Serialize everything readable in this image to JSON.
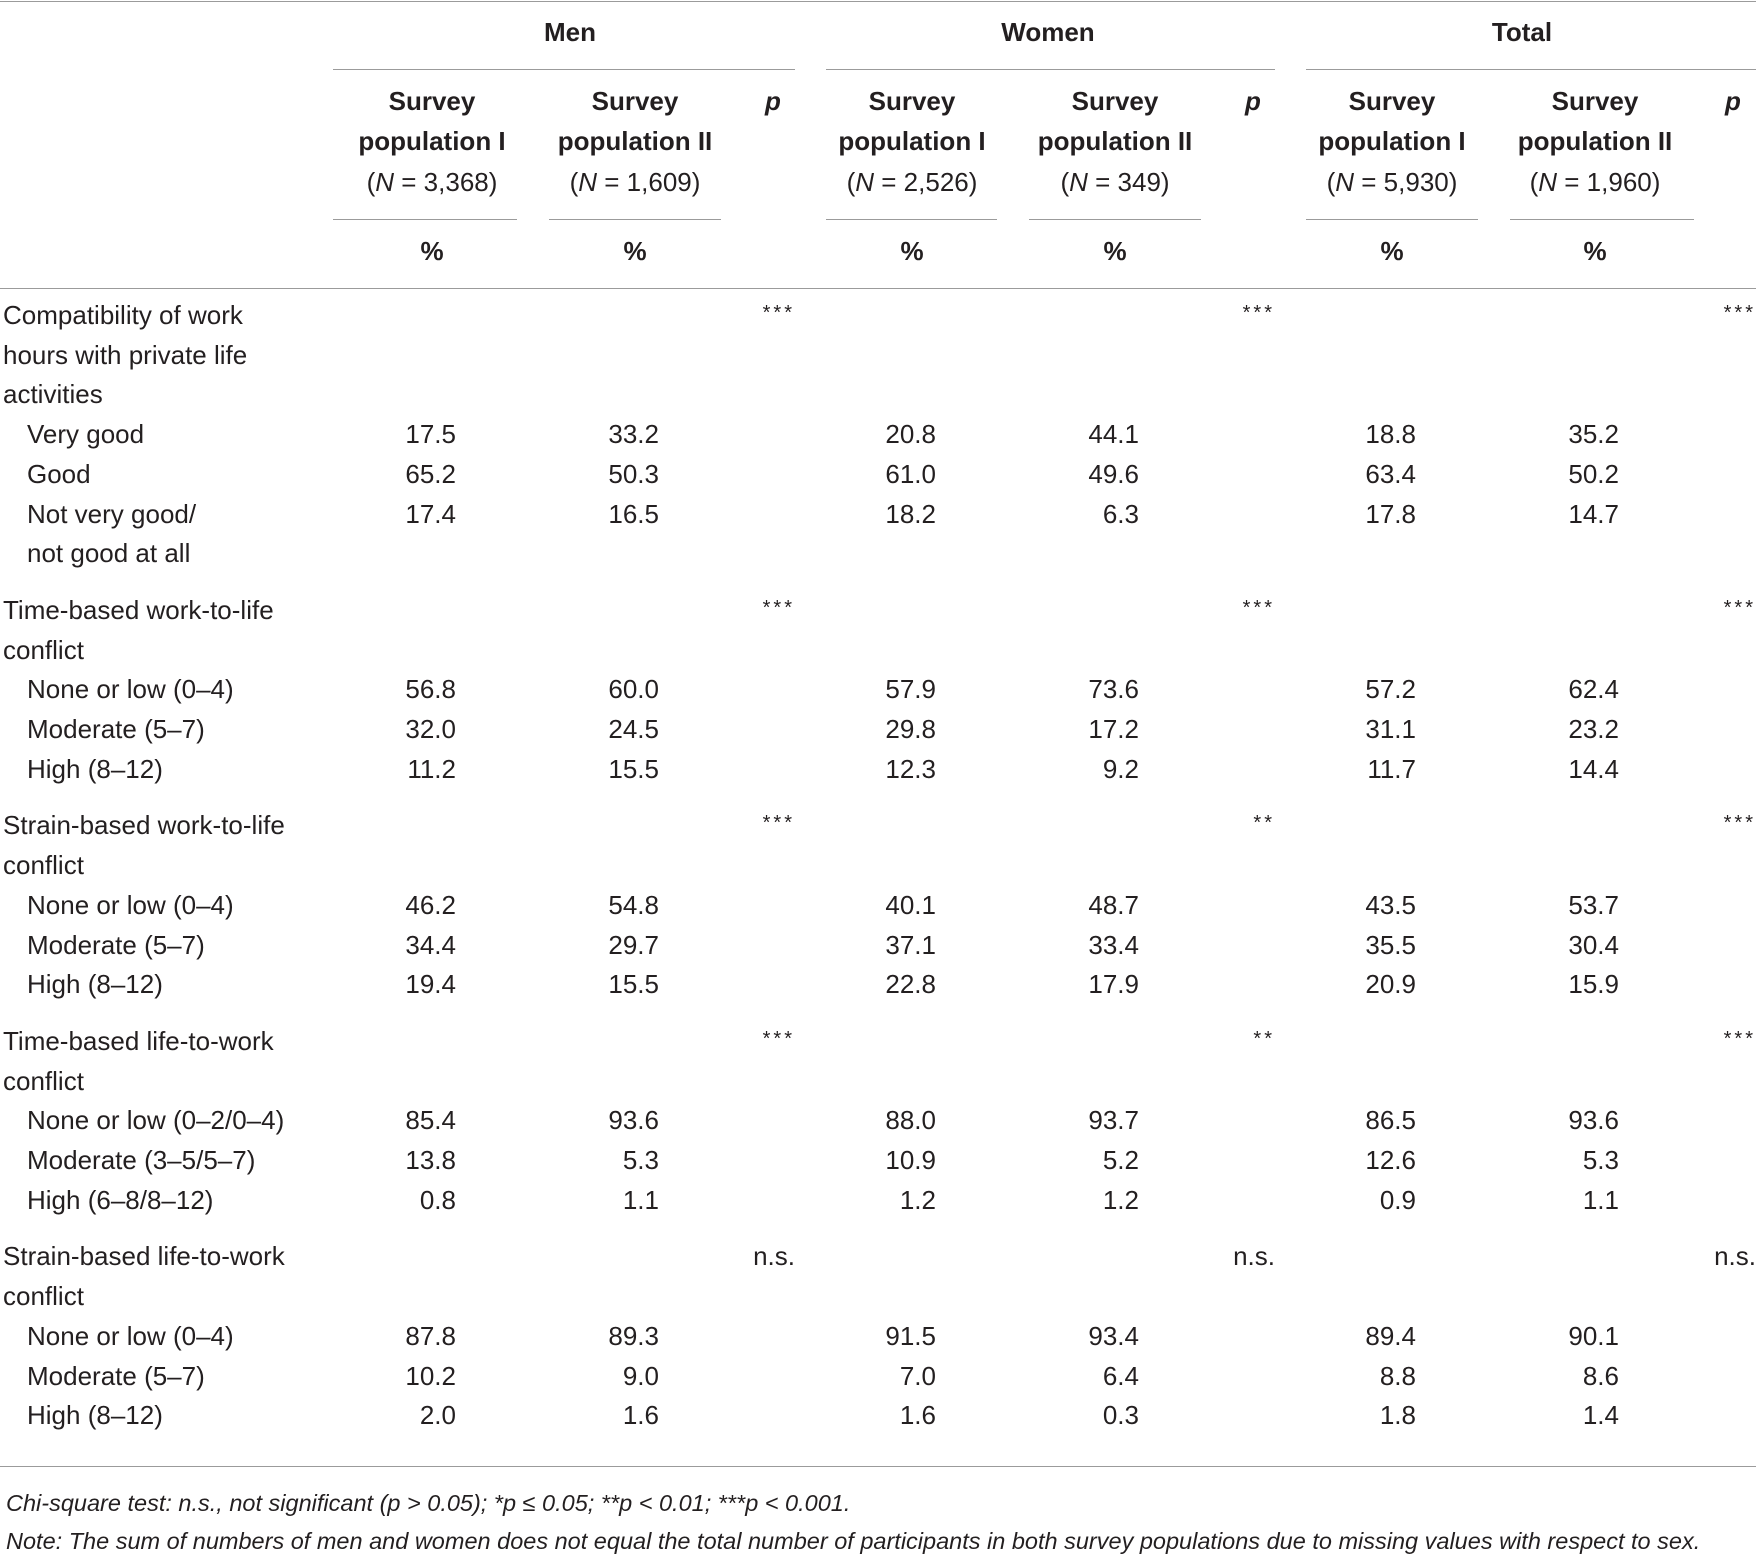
{
  "groups": [
    "Men",
    "Women",
    "Total"
  ],
  "sub_headers": {
    "survey_word": "Survey",
    "pop1_word": "population I",
    "pop2_word": "population II",
    "p": "p",
    "pct": "%",
    "n_values": [
      "(N = 3,368)",
      "(N = 1,609)",
      "(N = 2,526)",
      "(N = 349)",
      "(N = 5,930)",
      "(N = 1,960)"
    ]
  },
  "sections": [
    {
      "title_lines": [
        "Compatibility of work",
        "hours with private life",
        "activities"
      ],
      "p": [
        "***",
        "***",
        "***"
      ],
      "rows": [
        {
          "label": [
            "Very good"
          ],
          "values": [
            "17.5",
            "33.2",
            "20.8",
            "44.1",
            "18.8",
            "35.2"
          ]
        },
        {
          "label": [
            "Good"
          ],
          "values": [
            "65.2",
            "50.3",
            "61.0",
            "49.6",
            "63.4",
            "50.2"
          ]
        },
        {
          "label": [
            "Not very good/",
            "not good at all"
          ],
          "values": [
            "17.4",
            "16.5",
            "18.2",
            "6.3",
            "17.8",
            "14.7"
          ]
        }
      ]
    },
    {
      "title_lines": [
        "Time-based work-to-life",
        "conflict"
      ],
      "p": [
        "***",
        "***",
        "***"
      ],
      "rows": [
        {
          "label": [
            "None or low (0–4)"
          ],
          "values": [
            "56.8",
            "60.0",
            "57.9",
            "73.6",
            "57.2",
            "62.4"
          ]
        },
        {
          "label": [
            "Moderate (5–7)"
          ],
          "values": [
            "32.0",
            "24.5",
            "29.8",
            "17.2",
            "31.1",
            "23.2"
          ]
        },
        {
          "label": [
            "High (8–12)"
          ],
          "values": [
            "11.2",
            "15.5",
            "12.3",
            "9.2",
            "11.7",
            "14.4"
          ]
        }
      ]
    },
    {
      "title_lines": [
        "Strain-based work-to-life",
        "conflict"
      ],
      "p": [
        "***",
        "**",
        "***"
      ],
      "rows": [
        {
          "label": [
            "None or low (0–4)"
          ],
          "values": [
            "46.2",
            "54.8",
            "40.1",
            "48.7",
            "43.5",
            "53.7"
          ]
        },
        {
          "label": [
            "Moderate (5–7)"
          ],
          "values": [
            "34.4",
            "29.7",
            "37.1",
            "33.4",
            "35.5",
            "30.4"
          ]
        },
        {
          "label": [
            "High (8–12)"
          ],
          "values": [
            "19.4",
            "15.5",
            "22.8",
            "17.9",
            "20.9",
            "15.9"
          ]
        }
      ]
    },
    {
      "title_lines": [
        "Time-based life-to-work",
        "conflict"
      ],
      "p": [
        "***",
        "**",
        "***"
      ],
      "rows": [
        {
          "label": [
            "None or low (0–2/0–4)"
          ],
          "values": [
            "85.4",
            "93.6",
            "88.0",
            "93.7",
            "86.5",
            "93.6"
          ]
        },
        {
          "label": [
            "Moderate (3–5/5–7)"
          ],
          "values": [
            "13.8",
            "5.3",
            "10.9",
            "5.2",
            "12.6",
            "5.3"
          ]
        },
        {
          "label": [
            "High (6–8/8–12)"
          ],
          "values": [
            "0.8",
            "1.1",
            "1.2",
            "1.2",
            "0.9",
            "1.1"
          ]
        }
      ]
    },
    {
      "title_lines": [
        "Strain-based life-to-work",
        "conflict"
      ],
      "p": [
        "n.s.",
        "n.s.",
        "n.s."
      ],
      "rows": [
        {
          "label": [
            "None or low (0–4)"
          ],
          "values": [
            "87.8",
            "89.3",
            "91.5",
            "93.4",
            "89.4",
            "90.1"
          ]
        },
        {
          "label": [
            "Moderate (5–7)"
          ],
          "values": [
            "10.2",
            "9.0",
            "7.0",
            "6.4",
            "8.8",
            "8.6"
          ]
        },
        {
          "label": [
            "High (8–12)"
          ],
          "values": [
            "2.0",
            "1.6",
            "1.6",
            "0.3",
            "1.8",
            "1.4"
          ]
        }
      ]
    }
  ],
  "footnotes": [
    "Chi-square test: n.s., not significant (p > 0.05); *p ≤ 0.05; **p < 0.01; ***p < 0.001.",
    "Note: The sum of numbers of men and women does not equal the total number of participants in both survey populations due to missing values with respect to sex."
  ]
}
